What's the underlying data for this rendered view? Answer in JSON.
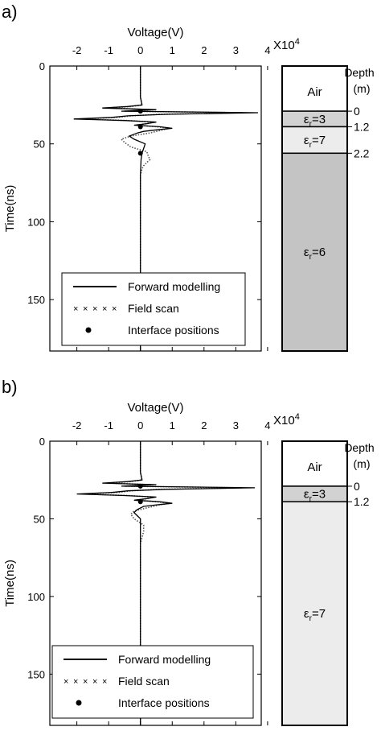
{
  "chart_data": [
    {
      "panel_label": "a)",
      "type": "line",
      "xlabel": "Voltage(V)",
      "ylabel": "Time(ns)",
      "x_multiplier": "X10",
      "x_multiplier_exp": "4",
      "xlim": [
        -2.85,
        3.8
      ],
      "ylim": [
        0,
        183
      ],
      "xticks": [
        "-2",
        "-1",
        "0",
        "1",
        "2",
        "3",
        "4"
      ],
      "yticks": [
        "0",
        "50",
        "100",
        "150"
      ],
      "y_reversed": true,
      "legend": {
        "placement": "bottom",
        "entries": [
          {
            "label": "Forward modelling",
            "style": "solid"
          },
          {
            "label": "Field scan",
            "style": "cross"
          },
          {
            "label": "Interface positions",
            "style": "dot"
          }
        ]
      },
      "series": [
        {
          "name": "Forward modelling",
          "t": [
            0,
            10,
            20,
            25,
            26,
            27,
            28,
            29,
            30,
            31,
            32,
            33,
            34,
            35,
            36,
            37,
            38,
            39,
            40,
            41,
            42,
            43,
            45,
            47,
            50,
            53,
            56,
            60,
            70,
            90,
            120,
            150,
            183
          ],
          "v": [
            0,
            0,
            0,
            0.05,
            -0.4,
            -1.2,
            0.5,
            -0.6,
            3.7,
            0.8,
            -0.4,
            -0.9,
            -2.1,
            -0.5,
            0.5,
            0.2,
            -0.2,
            0.6,
            1.0,
            0.5,
            0.1,
            -0.1,
            -0.35,
            -0.2,
            0.15,
            0.1,
            0.05,
            0.02,
            0,
            0,
            0,
            0,
            0
          ]
        },
        {
          "name": "Field scan",
          "t": [
            0,
            10,
            20,
            25,
            26,
            27,
            28,
            29,
            30,
            31,
            32,
            33,
            34,
            35,
            36,
            37,
            38,
            39,
            40,
            41,
            43,
            45,
            47,
            49,
            52,
            55,
            58,
            60,
            62,
            64,
            66,
            70,
            90,
            120,
            150,
            183
          ],
          "v": [
            0,
            0,
            0,
            0.05,
            -0.3,
            -1.0,
            0.3,
            -0.5,
            3.2,
            0.6,
            -0.3,
            -0.7,
            -1.8,
            -0.4,
            0.4,
            0.2,
            -0.1,
            0.5,
            0.9,
            0.7,
            0.3,
            -0.3,
            -0.6,
            -0.5,
            -0.3,
            0.2,
            0.25,
            0.3,
            0.2,
            0.1,
            0.05,
            0,
            0,
            0,
            0,
            0
          ]
        }
      ],
      "interfaces_ns": [
        29,
        39,
        56
      ],
      "column": {
        "header": "Depth",
        "unit": "(m)",
        "layers": [
          {
            "label": "Air",
            "top_ns": 0,
            "bottom_ns": 29,
            "fill": "#ffffff"
          },
          {
            "label_main": "ε",
            "label_sub": "r",
            "label_value": "=3",
            "top_ns": 29,
            "bottom_ns": 39,
            "fill": "#d2d2d2"
          },
          {
            "label_main": "ε",
            "label_sub": "r",
            "label_value": "=7",
            "top_ns": 39,
            "bottom_ns": 56,
            "fill": "#ececec"
          },
          {
            "label_main": "ε",
            "label_sub": "r",
            "label_value": "=6",
            "top_ns": 56,
            "bottom_ns": 183,
            "fill": "#c4c4c4"
          }
        ],
        "depth_marks": [
          {
            "label": "0",
            "at_ns": 29
          },
          {
            "label": "1.2",
            "at_ns": 39
          },
          {
            "label": "2.2",
            "at_ns": 56
          }
        ]
      }
    },
    {
      "panel_label": "b)",
      "type": "line",
      "xlabel": "Voltage(V)",
      "ylabel": "Time(ns)",
      "x_multiplier": "X10",
      "x_multiplier_exp": "4",
      "xlim": [
        -2.85,
        3.8
      ],
      "ylim": [
        0,
        183
      ],
      "xticks": [
        "-2",
        "-1",
        "0",
        "1",
        "2",
        "3",
        "4"
      ],
      "yticks": [
        "0",
        "50",
        "100",
        "150"
      ],
      "y_reversed": true,
      "legend": {
        "placement": "bottom",
        "entries": [
          {
            "label": "Forward modelling",
            "style": "solid"
          },
          {
            "label": "Field scan",
            "style": "cross"
          },
          {
            "label": "Interface positions",
            "style": "dot"
          }
        ]
      },
      "series": [
        {
          "name": "Forward modelling",
          "t": [
            0,
            10,
            20,
            25,
            26,
            27,
            28,
            29,
            30,
            31,
            32,
            33,
            34,
            35,
            36,
            37,
            38,
            39,
            40,
            41,
            42,
            44,
            46,
            48,
            50,
            55,
            60,
            70,
            90,
            120,
            150,
            183
          ],
          "v": [
            0,
            0,
            0,
            0.05,
            -0.4,
            -1.2,
            0.5,
            -0.6,
            3.6,
            0.8,
            -0.4,
            -0.9,
            -2.0,
            -0.5,
            0.5,
            0.2,
            -0.2,
            0.6,
            1.0,
            0.5,
            0.1,
            -0.1,
            -0.2,
            -0.1,
            0,
            0,
            0,
            0,
            0,
            0,
            0,
            0
          ]
        },
        {
          "name": "Field scan",
          "t": [
            0,
            10,
            20,
            25,
            26,
            27,
            28,
            29,
            30,
            31,
            32,
            33,
            34,
            35,
            36,
            37,
            38,
            39,
            40,
            41,
            43,
            45,
            47,
            50,
            54,
            58,
            62,
            66,
            70,
            90,
            120,
            150,
            183
          ],
          "v": [
            0,
            0,
            0,
            0.05,
            -0.3,
            -1.0,
            0.3,
            -0.5,
            3.2,
            0.6,
            -0.3,
            -0.7,
            -1.8,
            -0.4,
            0.4,
            0.2,
            -0.1,
            0.5,
            0.9,
            0.6,
            0.2,
            -0.2,
            -0.3,
            -0.2,
            0.1,
            0.1,
            0.05,
            0,
            0,
            0,
            0,
            0,
            0
          ]
        }
      ],
      "interfaces_ns": [
        29,
        39
      ],
      "column": {
        "header": "Depth",
        "unit": "(m)",
        "layers": [
          {
            "label": "Air",
            "top_ns": 0,
            "bottom_ns": 29,
            "fill": "#ffffff"
          },
          {
            "label_main": "ε",
            "label_sub": "r",
            "label_value": "=3",
            "top_ns": 29,
            "bottom_ns": 39,
            "fill": "#d2d2d2"
          },
          {
            "label_main": "ε",
            "label_sub": "r",
            "label_value": "=7",
            "top_ns": 39,
            "bottom_ns": 183,
            "fill": "#ececec"
          }
        ],
        "depth_marks": [
          {
            "label": "0",
            "at_ns": 29
          },
          {
            "label": "1.2",
            "at_ns": 39
          }
        ]
      }
    }
  ]
}
